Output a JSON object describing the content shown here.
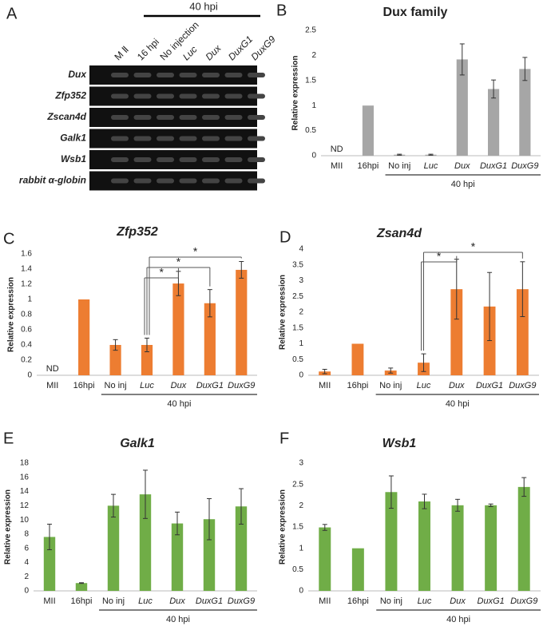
{
  "gel": {
    "panel": "A",
    "header": "40 hpi",
    "columns": [
      "M Ⅱ",
      "16 hpi",
      "No injection",
      "Luc",
      "Dux",
      "DuxG1",
      "DuxG9"
    ],
    "italic": [
      false,
      false,
      false,
      true,
      true,
      true,
      true
    ],
    "rows": [
      "Dux",
      "Zfp352",
      "Zscan4d",
      "Galk1",
      "Wsb1",
      "rabbit α-globin"
    ]
  },
  "chart_data": [
    {
      "type": "bar",
      "panel": "B",
      "title": "Dux family",
      "title_italic": false,
      "ylabel": "Relative expression",
      "categories": [
        "MII",
        "16hpi",
        "No inj",
        "Luc",
        "Dux",
        "DuxG1",
        "DuxG9"
      ],
      "italic": [
        false,
        false,
        false,
        true,
        true,
        true,
        true
      ],
      "values": [
        null,
        1.0,
        0.02,
        0.02,
        1.92,
        1.33,
        1.73
      ],
      "errors": [
        null,
        null,
        0.01,
        0.01,
        0.31,
        0.18,
        0.23
      ],
      "na_label": "ND",
      "group_label": "40 hpi",
      "color": "#a6a6a6",
      "ylim": [
        0,
        2.5
      ],
      "yticks": [
        0,
        0.5,
        1,
        1.5,
        2,
        2.5
      ],
      "significance": []
    },
    {
      "type": "bar",
      "panel": "C",
      "title": "Zfp352",
      "title_italic": true,
      "ylabel": "Relative expression",
      "categories": [
        "MII",
        "16hpi",
        "No inj",
        "Luc",
        "Dux",
        "DuxG1",
        "DuxG9"
      ],
      "italic": [
        false,
        false,
        false,
        true,
        true,
        true,
        true
      ],
      "values": [
        null,
        1.0,
        0.4,
        0.4,
        1.21,
        0.95,
        1.39
      ],
      "errors": [
        null,
        null,
        0.07,
        0.09,
        0.16,
        0.18,
        0.11
      ],
      "na_label": "ND",
      "group_label": "40 hpi",
      "color": "#ed7d31",
      "ylim": [
        0,
        1.6
      ],
      "yticks": [
        0,
        0.2,
        0.4,
        0.6,
        0.8,
        1,
        1.2,
        1.4,
        1.6
      ],
      "significance": [
        {
          "from": "Luc",
          "to": "Dux",
          "label": "*"
        },
        {
          "from": "Luc",
          "to": "DuxG1",
          "label": "*"
        },
        {
          "from": "Luc",
          "to": "DuxG9",
          "label": "*"
        }
      ]
    },
    {
      "type": "bar",
      "panel": "D",
      "title": "Zsan4d",
      "title_italic": true,
      "ylabel": "Relative expression",
      "categories": [
        "MII",
        "16hpi",
        "No inj",
        "Luc",
        "Dux",
        "DuxG1",
        "DuxG9"
      ],
      "italic": [
        false,
        false,
        false,
        true,
        true,
        true,
        true
      ],
      "values": [
        0.12,
        1.0,
        0.15,
        0.4,
        2.73,
        2.18,
        2.73
      ],
      "errors": [
        0.07,
        null,
        0.08,
        0.28,
        0.95,
        1.08,
        0.87
      ],
      "group_label": "40 hpi",
      "color": "#ed7d31",
      "ylim": [
        0,
        4
      ],
      "yticks": [
        0,
        0.5,
        1,
        1.5,
        2,
        2.5,
        3,
        3.5,
        4
      ],
      "significance": [
        {
          "from": "Luc",
          "to": "Dux",
          "label": "*"
        },
        {
          "from": "Luc",
          "to": "DuxG9",
          "label": "*"
        }
      ]
    },
    {
      "type": "bar",
      "panel": "E",
      "title": "Galk1",
      "title_italic": true,
      "ylabel": "Relative expression",
      "categories": [
        "MII",
        "16hpi",
        "No inj",
        "Luc",
        "Dux",
        "DuxG1",
        "DuxG9"
      ],
      "italic": [
        false,
        false,
        false,
        true,
        true,
        true,
        true
      ],
      "values": [
        7.6,
        1.1,
        12.0,
        13.6,
        9.5,
        10.1,
        11.9
      ],
      "errors": [
        1.8,
        0.05,
        1.6,
        3.4,
        1.6,
        2.9,
        2.5
      ],
      "group_label": "40 hpi",
      "color": "#70ad47",
      "ylim": [
        0,
        18
      ],
      "yticks": [
        0,
        2,
        4,
        6,
        8,
        10,
        12,
        14,
        16,
        18
      ],
      "significance": []
    },
    {
      "type": "bar",
      "panel": "F",
      "title": "Wsb1",
      "title_italic": true,
      "ylabel": "Relative expression",
      "categories": [
        "MII",
        "16hpi",
        "No inj",
        "Luc",
        "Dux",
        "DuxG1",
        "DuxG9"
      ],
      "italic": [
        false,
        false,
        false,
        true,
        true,
        true,
        true
      ],
      "values": [
        1.49,
        1.0,
        2.32,
        2.1,
        2.01,
        2.01,
        2.44
      ],
      "errors": [
        0.07,
        null,
        0.38,
        0.17,
        0.14,
        0.03,
        0.22
      ],
      "group_label": "40 hpi",
      "color": "#70ad47",
      "ylim": [
        0,
        3
      ],
      "yticks": [
        0,
        0.5,
        1,
        1.5,
        2,
        2.5,
        3
      ],
      "significance": []
    }
  ]
}
